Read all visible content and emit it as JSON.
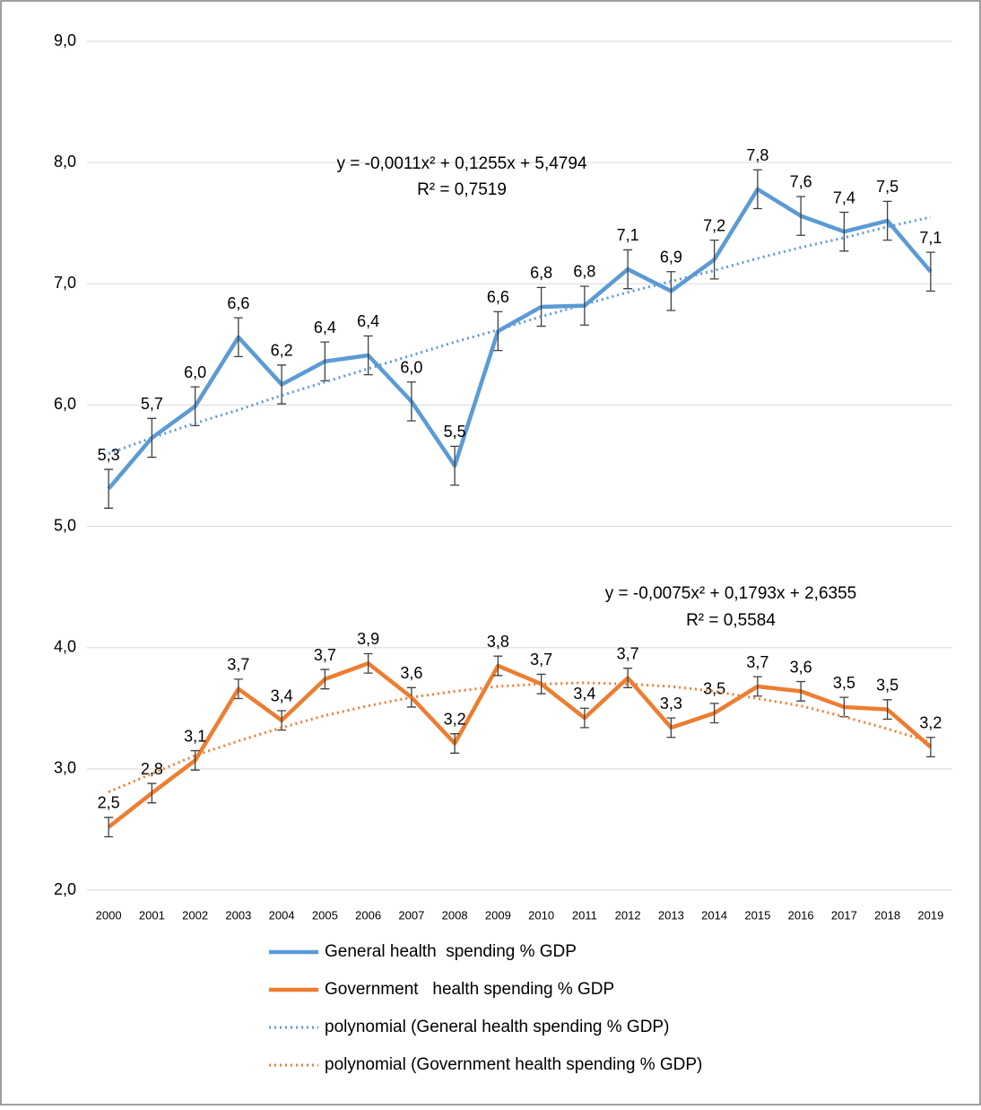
{
  "chart_data": {
    "type": "line",
    "categories": [
      "2000",
      "2001",
      "2002",
      "2003",
      "2004",
      "2005",
      "2006",
      "2007",
      "2008",
      "2009",
      "2010",
      "2011",
      "2012",
      "2013",
      "2014",
      "2015",
      "2016",
      "2017",
      "2018",
      "2019"
    ],
    "ylim": [
      2,
      9
    ],
    "yticks": [
      {
        "value": 2,
        "label": "2,0"
      },
      {
        "value": 3,
        "label": "3,0"
      },
      {
        "value": 4,
        "label": "4,0"
      },
      {
        "value": 5,
        "label": "5,0"
      },
      {
        "value": 6,
        "label": "6,0"
      },
      {
        "value": 7,
        "label": "7,0"
      },
      {
        "value": 8,
        "label": "8,0"
      },
      {
        "value": 9,
        "label": "9,0"
      }
    ],
    "grid": true,
    "legend": "bottom",
    "series": [
      {
        "name": "General health  spending % GDP",
        "color": "#5b9bd5",
        "style": "solid",
        "values": [
          5.31,
          5.73,
          5.99,
          6.56,
          6.17,
          6.36,
          6.41,
          6.03,
          5.5,
          6.61,
          6.81,
          6.82,
          7.12,
          6.94,
          7.2,
          7.78,
          7.56,
          7.43,
          7.52,
          7.1
        ],
        "value_labels": [
          "5,3",
          "5,7",
          "6,0",
          "6,6",
          "6,2",
          "6,4",
          "6,4",
          "6,0",
          "5,5",
          "6,6",
          "6,8",
          "6,8",
          "7,1",
          "6,9",
          "7,2",
          "7,8",
          "7,6",
          "7,4",
          "7,5",
          "7,1"
        ],
        "error": 0.16
      },
      {
        "name": "Government   health spending % GDP",
        "color": "#ed7d31",
        "style": "solid",
        "values": [
          2.52,
          2.8,
          3.07,
          3.66,
          3.4,
          3.74,
          3.87,
          3.59,
          3.21,
          3.85,
          3.7,
          3.42,
          3.75,
          3.34,
          3.46,
          3.68,
          3.64,
          3.51,
          3.49,
          3.18
        ],
        "value_labels": [
          "2,5",
          "2,8",
          "3,1",
          "3,7",
          "3,4",
          "3,7",
          "3,9",
          "3,6",
          "3,2",
          "3,8",
          "3,7",
          "3,4",
          "3,7",
          "3,3",
          "3,5",
          "3,7",
          "3,6",
          "3,5",
          "3,5",
          "3,2"
        ],
        "error": 0.08
      },
      {
        "name": "polynomial (General health spending % GDP)",
        "color": "#5b9bd5",
        "style": "dotted",
        "values": [
          5.6,
          5.73,
          5.85,
          5.96,
          6.08,
          6.19,
          6.3,
          6.41,
          6.52,
          6.62,
          6.73,
          6.83,
          6.93,
          7.02,
          7.11,
          7.21,
          7.3,
          7.38,
          7.47,
          7.55
        ],
        "equation": "y = -0,0011x² + 0,1255x + 5,4794",
        "r_squared": "R² = 0,7519"
      },
      {
        "name": "polynomial (Government health spending % GDP)",
        "color": "#ed7d31",
        "style": "dotted",
        "values": [
          2.81,
          2.96,
          3.11,
          3.23,
          3.34,
          3.44,
          3.52,
          3.59,
          3.64,
          3.68,
          3.7,
          3.71,
          3.7,
          3.68,
          3.64,
          3.58,
          3.52,
          3.43,
          3.33,
          3.22
        ],
        "equation": "y = -0,0075x² + 0,1793x + 2,6355",
        "r_squared": "R² = 0,5584"
      }
    ]
  }
}
